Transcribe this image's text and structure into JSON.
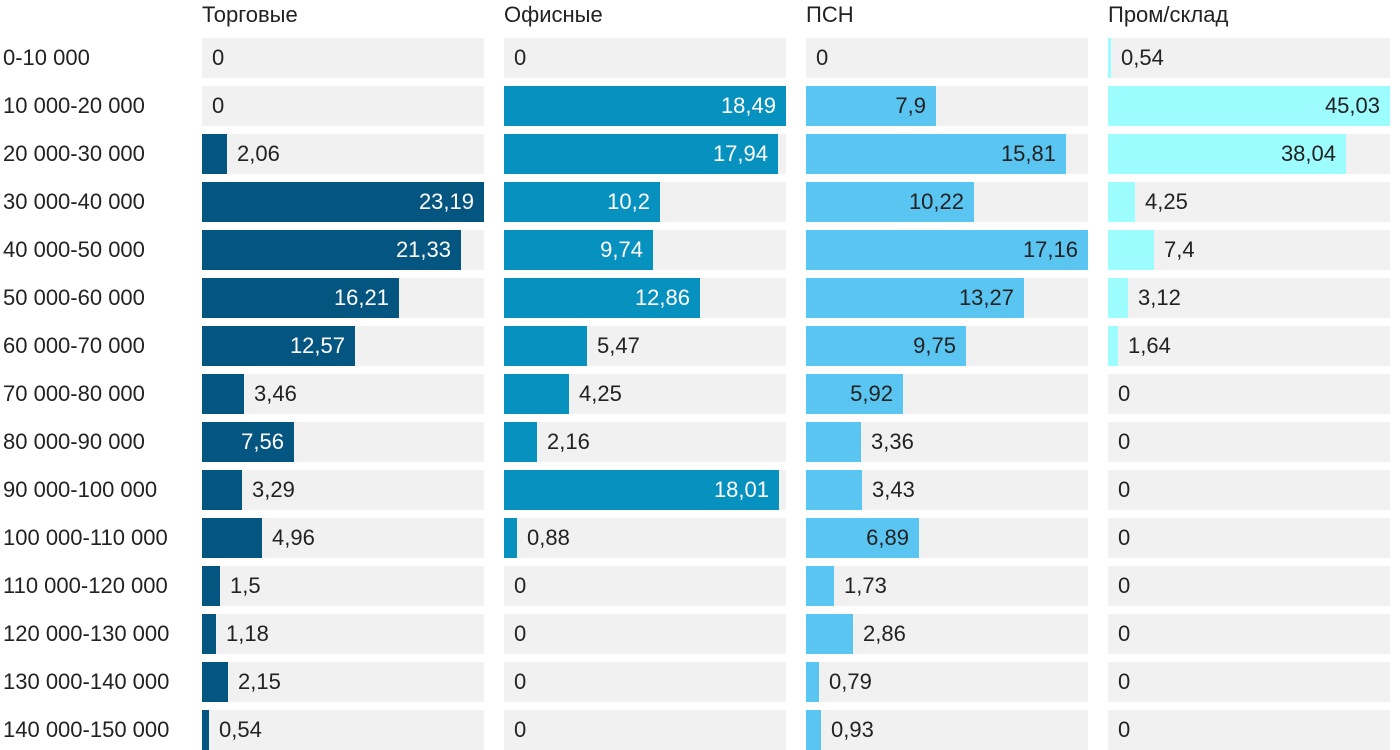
{
  "chart_data": {
    "type": "bar",
    "orientation": "horizontal",
    "layout": "small-multiples",
    "categories": [
      "0-10 000",
      "10 000-20 000",
      "20 000-30 000",
      "30 000-40 000",
      "40 000-50 000",
      "50 000-60 000",
      "60 000-70 000",
      "70 000-80 000",
      "80 000-90 000",
      "90 000-100 000",
      "100 000-110 000",
      "110 000-120 000",
      "120 000-130 000",
      "130 000-140 000",
      "140 000-150 000"
    ],
    "series": [
      {
        "name": "Торговые",
        "color": "#04557f",
        "values": [
          0,
          0,
          2.06,
          23.19,
          21.33,
          16.21,
          12.57,
          3.46,
          7.56,
          3.29,
          4.96,
          1.5,
          1.18,
          2.15,
          0.54
        ],
        "labels": [
          "0",
          "0",
          "2,06",
          "23,19",
          "21,33",
          "16,21",
          "12,57",
          "3,46",
          "7,56",
          "3,29",
          "4,96",
          "1,5",
          "1,18",
          "2,15",
          "0,54"
        ],
        "xlim": [
          0,
          23.19
        ]
      },
      {
        "name": "Офисные",
        "color": "#0791bf",
        "values": [
          0,
          18.49,
          17.94,
          10.2,
          9.74,
          12.86,
          5.47,
          4.25,
          2.16,
          18.01,
          0.88,
          0,
          0,
          0,
          0
        ],
        "labels": [
          "0",
          "18,49",
          "17,94",
          "10,2",
          "9,74",
          "12,86",
          "5,47",
          "4,25",
          "2,16",
          "18,01",
          "0,88",
          "0",
          "0",
          "0",
          "0"
        ],
        "xlim": [
          0,
          18.49
        ]
      },
      {
        "name": "ПСН",
        "color": "#5bc5f2",
        "values": [
          0,
          7.9,
          15.81,
          10.22,
          17.16,
          13.27,
          9.75,
          5.92,
          3.36,
          3.43,
          6.89,
          1.73,
          2.86,
          0.79,
          0.93
        ],
        "labels": [
          "0",
          "7,9",
          "15,81",
          "10,22",
          "17,16",
          "13,27",
          "9,75",
          "5,92",
          "3,36",
          "3,43",
          "6,89",
          "1,73",
          "2,86",
          "0,79",
          "0,93"
        ],
        "xlim": [
          0,
          17.16
        ]
      },
      {
        "name": "Пром/склад",
        "color": "#9cfcfe",
        "values": [
          0.54,
          45.03,
          38.04,
          4.25,
          7.4,
          3.12,
          1.64,
          0,
          0,
          0,
          0,
          0,
          0,
          0,
          0
        ],
        "labels": [
          "0,54",
          "45,03",
          "38,04",
          "4,25",
          "7,4",
          "3,12",
          "1,64",
          "0",
          "0",
          "0",
          "0",
          "0",
          "0",
          "0",
          "0"
        ],
        "xlim": [
          0,
          45.03
        ]
      }
    ],
    "track_color": "#f1f1f1",
    "grid": false,
    "legend": "none",
    "value_labels": true
  }
}
